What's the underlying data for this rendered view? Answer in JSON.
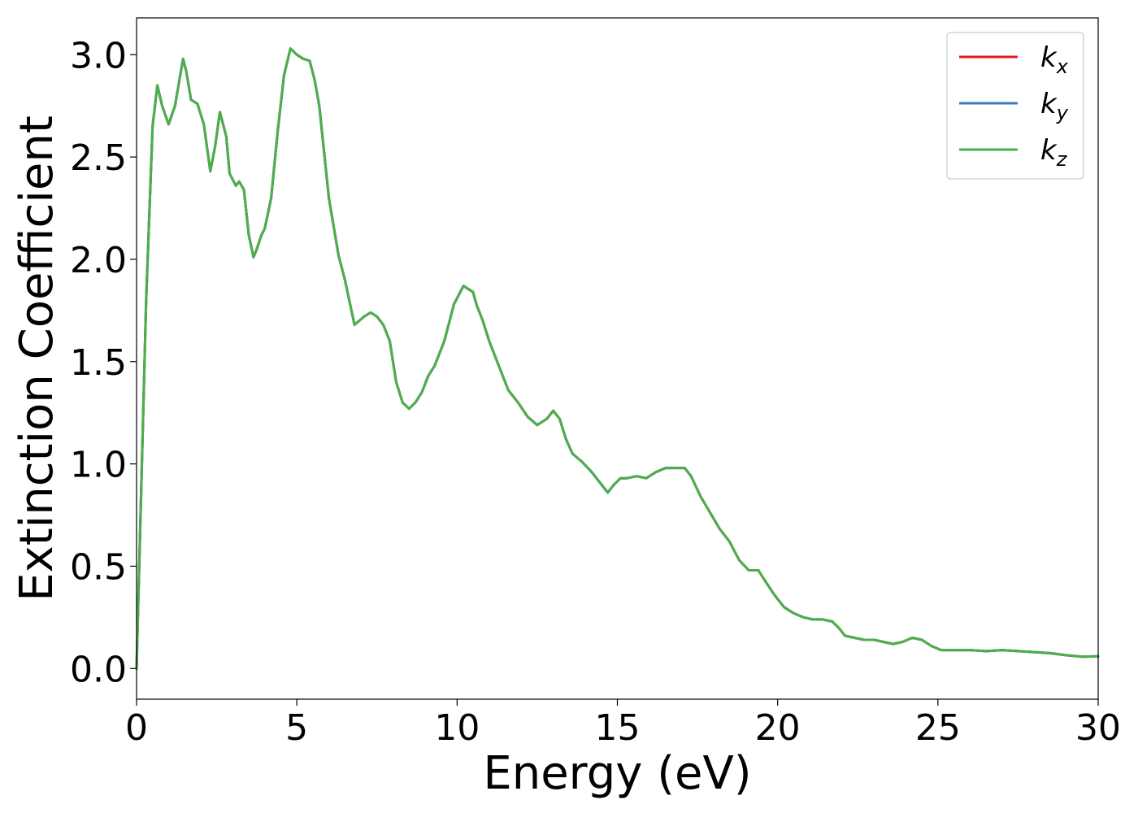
{
  "chart_data": {
    "type": "line",
    "xlabel": "Energy (eV)",
    "ylabel": "Extinction Coefficient",
    "xlim": [
      0,
      30
    ],
    "ylim": [
      -0.15,
      3.18
    ],
    "xticks": [
      "0",
      "5",
      "10",
      "15",
      "20",
      "25",
      "30"
    ],
    "yticks": [
      "0.0",
      "0.5",
      "1.0",
      "1.5",
      "2.0",
      "2.5",
      "3.0"
    ],
    "grid": false,
    "legend_position": "top-right",
    "series": [
      {
        "name": "k_x",
        "label_base": "k",
        "label_sub": "x",
        "color": "#e41a1c"
      },
      {
        "name": "k_y",
        "label_base": "k",
        "label_sub": "y",
        "color": "#377eb8"
      },
      {
        "name": "k_z",
        "label_base": "k",
        "label_sub": "z",
        "color": "#4daf4a"
      }
    ],
    "x": [
      0,
      0.3,
      0.5,
      0.65,
      0.8,
      1.0,
      1.2,
      1.45,
      1.55,
      1.7,
      1.9,
      2.1,
      2.3,
      2.45,
      2.6,
      2.8,
      2.9,
      3.1,
      3.2,
      3.35,
      3.5,
      3.65,
      3.75,
      3.9,
      4.0,
      4.2,
      4.4,
      4.6,
      4.8,
      5.0,
      5.2,
      5.4,
      5.55,
      5.7,
      6.0,
      6.3,
      6.5,
      6.8,
      7.1,
      7.3,
      7.5,
      7.7,
      7.9,
      8.1,
      8.3,
      8.5,
      8.7,
      8.9,
      9.1,
      9.3,
      9.6,
      9.9,
      10.2,
      10.5,
      10.6,
      10.8,
      11.0,
      11.3,
      11.6,
      11.9,
      12.2,
      12.5,
      12.8,
      13.0,
      13.2,
      13.4,
      13.6,
      13.9,
      14.2,
      14.5,
      14.7,
      14.9,
      15.1,
      15.3,
      15.6,
      15.9,
      16.2,
      16.5,
      16.8,
      17.1,
      17.3,
      17.6,
      17.9,
      18.2,
      18.5,
      18.8,
      19.1,
      19.4,
      19.6,
      19.9,
      20.2,
      20.5,
      20.8,
      21.1,
      21.4,
      21.7,
      21.9,
      22.1,
      22.4,
      22.7,
      23.0,
      23.3,
      23.6,
      23.9,
      24.2,
      24.5,
      24.8,
      25.1,
      25.5,
      26.0,
      26.5,
      27.0,
      27.5,
      28.0,
      28.5,
      29.0,
      29.5,
      30.0
    ],
    "y": [
      0.0,
      1.8,
      2.65,
      2.85,
      2.75,
      2.66,
      2.75,
      2.98,
      2.92,
      2.78,
      2.76,
      2.66,
      2.43,
      2.55,
      2.72,
      2.6,
      2.42,
      2.36,
      2.38,
      2.34,
      2.12,
      2.01,
      2.05,
      2.12,
      2.15,
      2.3,
      2.62,
      2.9,
      3.03,
      3.0,
      2.98,
      2.97,
      2.88,
      2.75,
      2.3,
      2.02,
      1.9,
      1.68,
      1.72,
      1.74,
      1.72,
      1.68,
      1.6,
      1.4,
      1.3,
      1.27,
      1.3,
      1.35,
      1.43,
      1.48,
      1.6,
      1.78,
      1.87,
      1.84,
      1.78,
      1.7,
      1.6,
      1.48,
      1.36,
      1.3,
      1.23,
      1.19,
      1.22,
      1.26,
      1.22,
      1.12,
      1.05,
      1.01,
      0.96,
      0.9,
      0.86,
      0.9,
      0.93,
      0.93,
      0.94,
      0.93,
      0.96,
      0.98,
      0.98,
      0.98,
      0.94,
      0.84,
      0.76,
      0.68,
      0.62,
      0.53,
      0.48,
      0.48,
      0.43,
      0.36,
      0.3,
      0.27,
      0.25,
      0.24,
      0.24,
      0.23,
      0.2,
      0.16,
      0.15,
      0.14,
      0.14,
      0.13,
      0.12,
      0.13,
      0.15,
      0.14,
      0.11,
      0.09,
      0.09,
      0.09,
      0.085,
      0.09,
      0.085,
      0.08,
      0.075,
      0.065,
      0.058,
      0.06
    ]
  }
}
